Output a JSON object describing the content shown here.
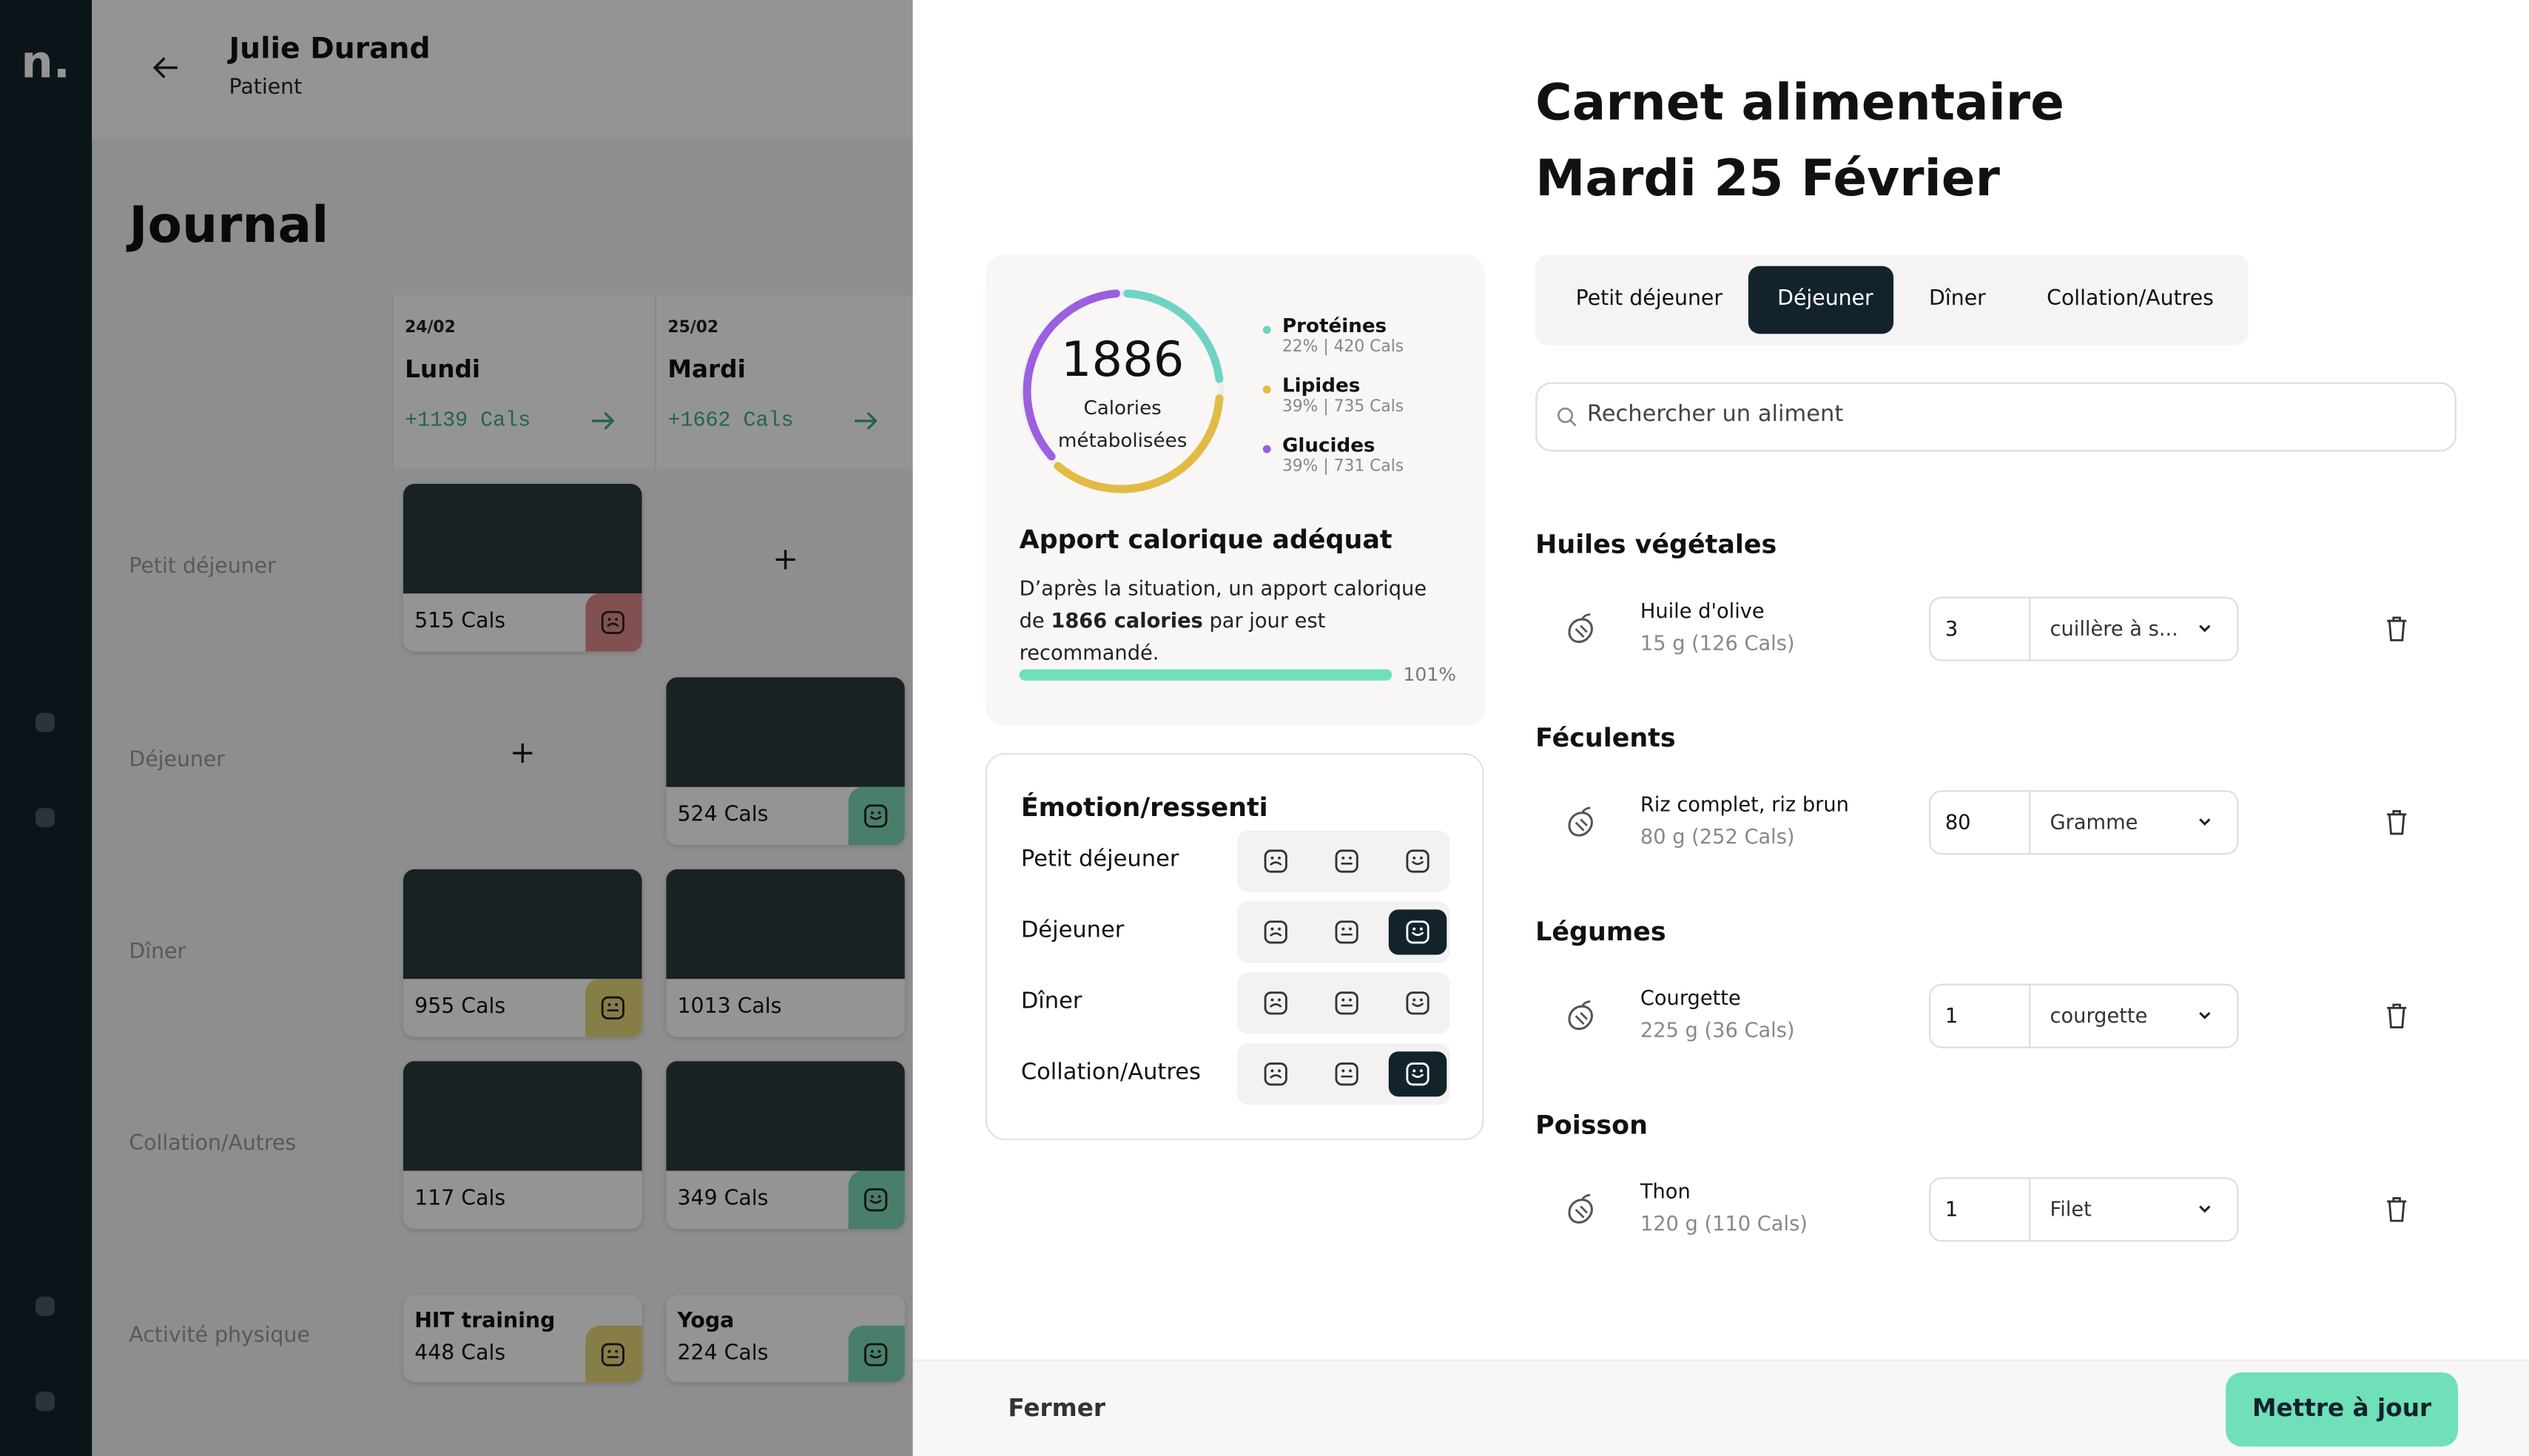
{
  "sidebar": {
    "logo": "n."
  },
  "patient": {
    "name": "Julie Durand",
    "role": "Patient"
  },
  "journal": {
    "title": "Journal",
    "rows": [
      "Petit déjeuner",
      "Déjeuner",
      "Dîner",
      "Collation/Autres",
      "Activité physique"
    ],
    "days": [
      {
        "date": "24/02",
        "day": "Lundi",
        "total": "+1139 Cals",
        "cells": [
          {
            "cals": "515 Cals",
            "mood": "sad"
          },
          null,
          {
            "cals": "955 Cals",
            "mood": "neutral"
          },
          {
            "cals": "117 Cals"
          },
          {
            "label": "HIT training",
            "cals": "448 Cals",
            "mood": "neutral"
          }
        ]
      },
      {
        "date": "25/02",
        "day": "Mardi",
        "total": "+1662 Cals",
        "cells": [
          null,
          {
            "cals": "524 Cals",
            "mood": "happy"
          },
          {
            "cals": "1013 Cals"
          },
          {
            "cals": "349 Cals",
            "mood": "happy"
          },
          {
            "label": "Yoga",
            "cals": "224 Cals",
            "mood": "happy"
          }
        ]
      }
    ]
  },
  "modal": {
    "title": "Carnet alimentaire",
    "date": "Mardi 25 Février",
    "summary": {
      "calories": "1886",
      "calories_label": [
        "Calories",
        "métabolisées"
      ],
      "macros": [
        {
          "name": "Protéines",
          "detail": "22% | 420 Cals",
          "color": "#6fd3c4"
        },
        {
          "name": "Lipides",
          "detail": "39% | 735 Cals",
          "color": "#e2bb45"
        },
        {
          "name": "Glucides",
          "detail": "39% | 731 Cals",
          "color": "#9b5fe0"
        }
      ],
      "advice_title": "Apport calorique adéquat",
      "advice": [
        "D’après la situation, un apport calorique de ",
        "1866 calories",
        " par jour est recommandé."
      ],
      "progress": "101%"
    },
    "emotions": {
      "title": "Émotion/ressenti",
      "rows": [
        {
          "meal": "Petit déjeuner"
        },
        {
          "meal": "Déjeuner",
          "selected": "happy"
        },
        {
          "meal": "Dîner"
        },
        {
          "meal": "Collation/Autres",
          "selected": "happy"
        }
      ]
    },
    "tabs": [
      "Petit déjeuner",
      "Déjeuner",
      "Dîner",
      "Collation/Autres"
    ],
    "active_tab": 1,
    "search_placeholder": "Rechercher un aliment",
    "groups": [
      {
        "title": "Huiles végétales",
        "items": [
          {
            "name": "Huile d'olive",
            "detail": "15 g (126 Cals)",
            "quantity": "3",
            "unit": "cuillère à s..."
          }
        ]
      },
      {
        "title": "Féculents",
        "items": [
          {
            "name": "Riz complet, riz brun",
            "detail": "80 g (252 Cals)",
            "quantity": "80",
            "unit": "Gramme"
          }
        ]
      },
      {
        "title": "Légumes",
        "items": [
          {
            "name": "Courgette",
            "detail": "225 g (36 Cals)",
            "quantity": "1",
            "unit": "courgette"
          }
        ]
      },
      {
        "title": "Poisson",
        "items": [
          {
            "name": "Thon",
            "detail": "120 g (110 Cals)",
            "quantity": "1",
            "unit": "Filet"
          }
        ]
      }
    ],
    "footer": {
      "close": "Fermer",
      "submit": "Mettre à jour"
    }
  }
}
